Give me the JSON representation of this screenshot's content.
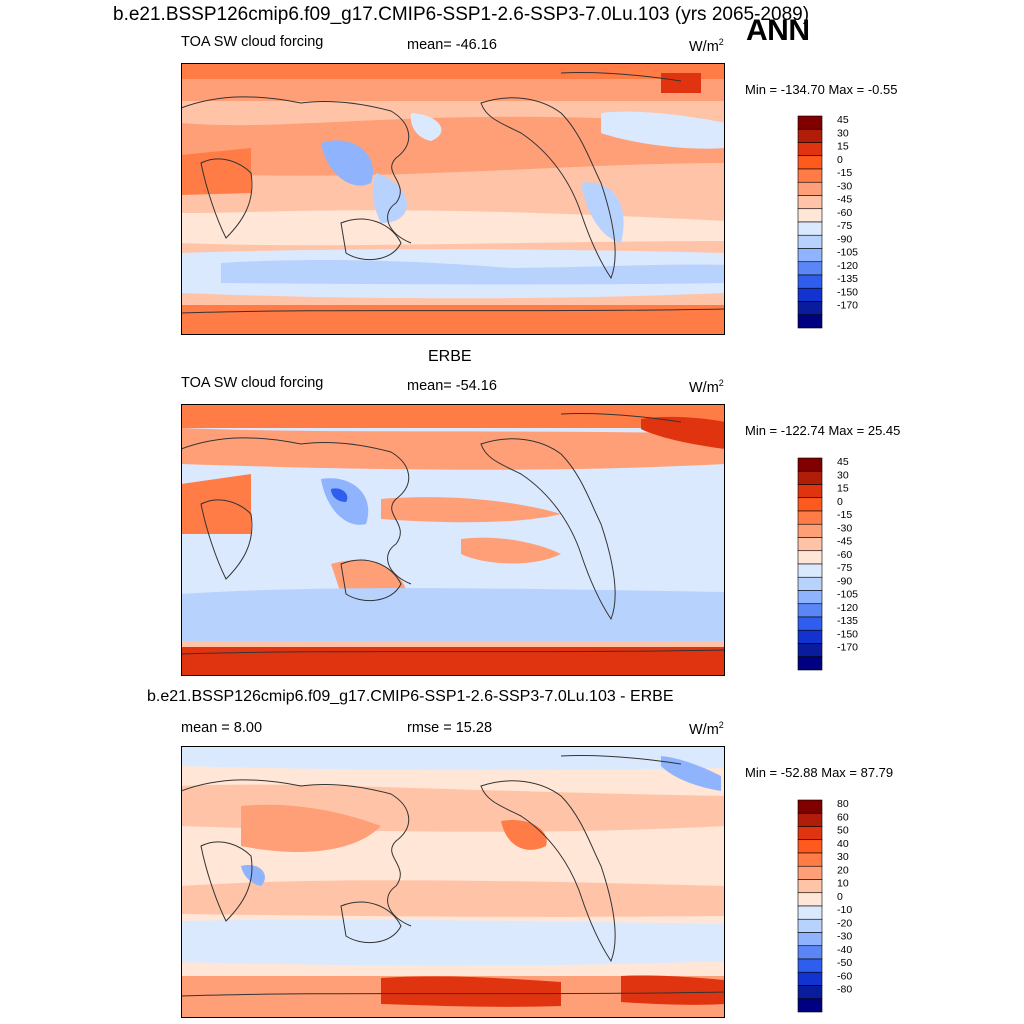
{
  "figure": {
    "title": "b.e21.BSSP126cmip6.f09_g17.CMIP6-SSP1-2.6-SSP3-7.0Lu.103 (yrs 2065-2089)",
    "season": "ANN"
  },
  "panels": [
    {
      "heading": "",
      "variable": "TOA SW cloud forcing",
      "stat_center": "mean= -46.16",
      "units_base": "W/m",
      "units_exp": "2",
      "stat_left": "",
      "minmax": "Min = -134.70 Max =  -0.55"
    },
    {
      "heading": "ERBE",
      "variable": "TOA SW cloud forcing",
      "stat_center": "mean= -54.16",
      "units_base": "W/m",
      "units_exp": "2",
      "stat_left": "",
      "minmax": "Min = -122.74 Max =  25.45"
    },
    {
      "heading": "b.e21.BSSP126cmip6.f09_g17.CMIP6-SSP1-2.6-SSP3-7.0Lu.103 - ERBE",
      "variable": "",
      "stat_left": "mean =   8.00",
      "stat_center": "rmse =  15.28",
      "units_base": "W/m",
      "units_exp": "2",
      "minmax": "Min = -52.88 Max =  87.79"
    }
  ],
  "chart_data": [
    {
      "type": "heatmap",
      "title": "TOA SW cloud forcing",
      "units": "W/m2",
      "mean": -46.16,
      "min": -134.7,
      "max": -0.55,
      "colorbar_levels": [
        "45",
        "30",
        "15",
        "0",
        "-15",
        "-30",
        "-45",
        "-60",
        "-75",
        "-90",
        "-105",
        "-120",
        "-135",
        "-150",
        "-170"
      ],
      "colors": [
        "#800000",
        "#b01e0a",
        "#e03410",
        "#ff5a1e",
        "#ff7c46",
        "#ff9f78",
        "#ffc4a8",
        "#ffe6d6",
        "#dbe9ff",
        "#b8d2fe",
        "#8fb3fc",
        "#5a86f6",
        "#2f5eef",
        "#1233d0",
        "#0a1c9e",
        "#000080"
      ]
    },
    {
      "type": "heatmap",
      "title": "ERBE — TOA SW cloud forcing",
      "units": "W/m2",
      "mean": -54.16,
      "min": -122.74,
      "max": 25.45,
      "colorbar_levels": [
        "45",
        "30",
        "15",
        "0",
        "-15",
        "-30",
        "-45",
        "-60",
        "-75",
        "-90",
        "-105",
        "-120",
        "-135",
        "-150",
        "-170"
      ],
      "colors": [
        "#800000",
        "#b01e0a",
        "#e03410",
        "#ff5a1e",
        "#ff7c46",
        "#ff9f78",
        "#ffc4a8",
        "#ffe6d6",
        "#dbe9ff",
        "#b8d2fe",
        "#8fb3fc",
        "#5a86f6",
        "#2f5eef",
        "#1233d0",
        "#0a1c9e",
        "#000080"
      ]
    },
    {
      "type": "heatmap",
      "title": "b.e21.BSSP126cmip6.f09_g17.CMIP6-SSP1-2.6-SSP3-7.0Lu.103 - ERBE",
      "units": "W/m2",
      "mean": 8.0,
      "rmse": 15.28,
      "min": -52.88,
      "max": 87.79,
      "colorbar_levels": [
        "80",
        "60",
        "50",
        "40",
        "30",
        "20",
        "10",
        "0",
        "-10",
        "-20",
        "-30",
        "-40",
        "-50",
        "-60",
        "-80"
      ],
      "colors": [
        "#800000",
        "#b01e0a",
        "#e03410",
        "#ff5a1e",
        "#ff7c46",
        "#ff9f78",
        "#ffc4a8",
        "#ffe6d6",
        "#dbe9ff",
        "#b8d2fe",
        "#8fb3fc",
        "#5a86f6",
        "#2f5eef",
        "#1233d0",
        "#0a1c9e",
        "#000080"
      ]
    }
  ]
}
